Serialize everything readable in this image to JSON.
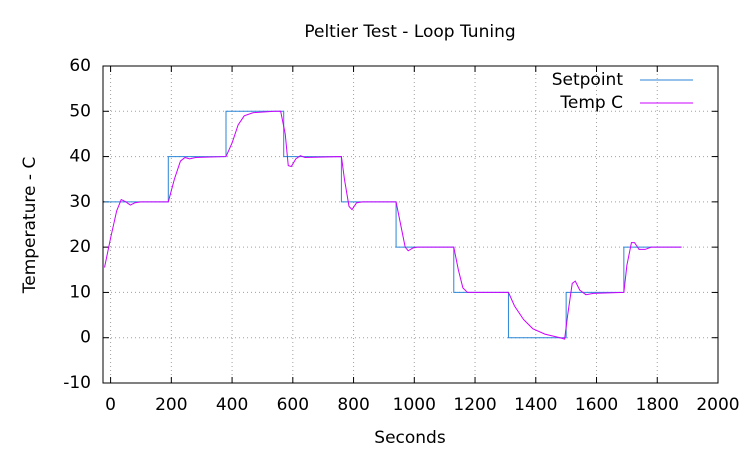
{
  "chart_data": {
    "type": "line",
    "title": "Peltier Test - Loop Tuning",
    "x_label": "Seconds",
    "y_label": "Temperature - C",
    "xlim": [
      -25,
      2000
    ],
    "ylim": [
      -10,
      60
    ],
    "xticks": [
      0,
      200,
      400,
      600,
      800,
      1000,
      1200,
      1400,
      1600,
      1800,
      2000
    ],
    "yticks": [
      -10,
      0,
      10,
      20,
      30,
      40,
      50,
      60
    ],
    "grid": true,
    "legend": "top-right",
    "series": [
      {
        "name": "Setpoint",
        "color": "#2a86d6",
        "x": [
          -20,
          190,
          190,
          380,
          380,
          570,
          570,
          760,
          760,
          940,
          940,
          1130,
          1130,
          1310,
          1310,
          1500,
          1500,
          1690,
          1690,
          1880
        ],
        "values": [
          30,
          30,
          40,
          40,
          50,
          50,
          40,
          40,
          30,
          30,
          20,
          20,
          10,
          10,
          0,
          0,
          10,
          10,
          20,
          20
        ]
      },
      {
        "name": "Temp C",
        "color": "#cc00ff",
        "x": [
          -20,
          0,
          20,
          35,
          50,
          65,
          80,
          100,
          190,
          210,
          230,
          245,
          260,
          280,
          380,
          400,
          420,
          440,
          470,
          540,
          560,
          575,
          585,
          595,
          610,
          625,
          640,
          760,
          770,
          785,
          795,
          810,
          830,
          940,
          955,
          970,
          980,
          995,
          1010,
          1130,
          1145,
          1160,
          1175,
          1310,
          1330,
          1360,
          1390,
          1430,
          1480,
          1495,
          1505,
          1520,
          1530,
          1545,
          1565,
          1590,
          1690,
          1700,
          1715,
          1725,
          1740,
          1760,
          1780,
          1880
        ],
        "values": [
          15.5,
          22,
          28,
          30.5,
          30,
          29.3,
          29.8,
          30,
          30,
          35,
          39,
          39.8,
          39.5,
          39.8,
          40,
          43,
          47,
          49,
          49.7,
          50,
          50,
          45,
          38,
          37.8,
          39.5,
          40.2,
          39.8,
          40,
          35,
          29,
          28.3,
          29.8,
          30,
          30,
          25,
          20,
          19.2,
          19.8,
          20,
          20,
          15,
          11,
          10,
          10,
          7,
          4,
          2,
          0.8,
          0,
          -0.3,
          5,
          12,
          12.5,
          10.5,
          9.5,
          9.8,
          10,
          16,
          21,
          21,
          19.5,
          19.5,
          20,
          20
        ]
      }
    ]
  }
}
